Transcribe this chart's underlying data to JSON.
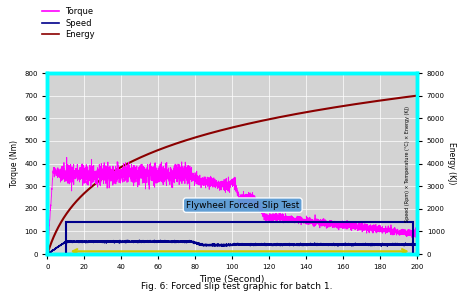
{
  "title": "Fig. 6: Forced slip test graphic for batch 1.",
  "xlabel": "Time (Second)",
  "ylabel_left": "Torque (Nm)",
  "ylabel_right": "Energy (KJ)",
  "xlim": [
    0,
    200
  ],
  "ylim_left": [
    0,
    800
  ],
  "ylim_right": [
    0,
    8000
  ],
  "xticks": [
    0,
    20,
    40,
    60,
    80,
    100,
    120,
    140,
    160,
    180,
    200
  ],
  "yticks_left": [
    0,
    100,
    200,
    300,
    400,
    500,
    600,
    700,
    800
  ],
  "yticks_right": [
    0,
    1000,
    2000,
    3000,
    4000,
    5000,
    6000,
    7000,
    8000
  ],
  "bg_color": "#d3d3d3",
  "border_color": "#00ffff",
  "annotation_text": "Flywheel Forced Slip Test",
  "annotation_bbox_color": "#5b9bd5",
  "torque_color": "#ff00ff",
  "speed_color": "#00008b",
  "energy_color": "#8b0000",
  "rect_color": "#00008b",
  "arrow_color": "#cccc00",
  "legend_labels": [
    "Torque",
    "Speed",
    "Energy"
  ]
}
